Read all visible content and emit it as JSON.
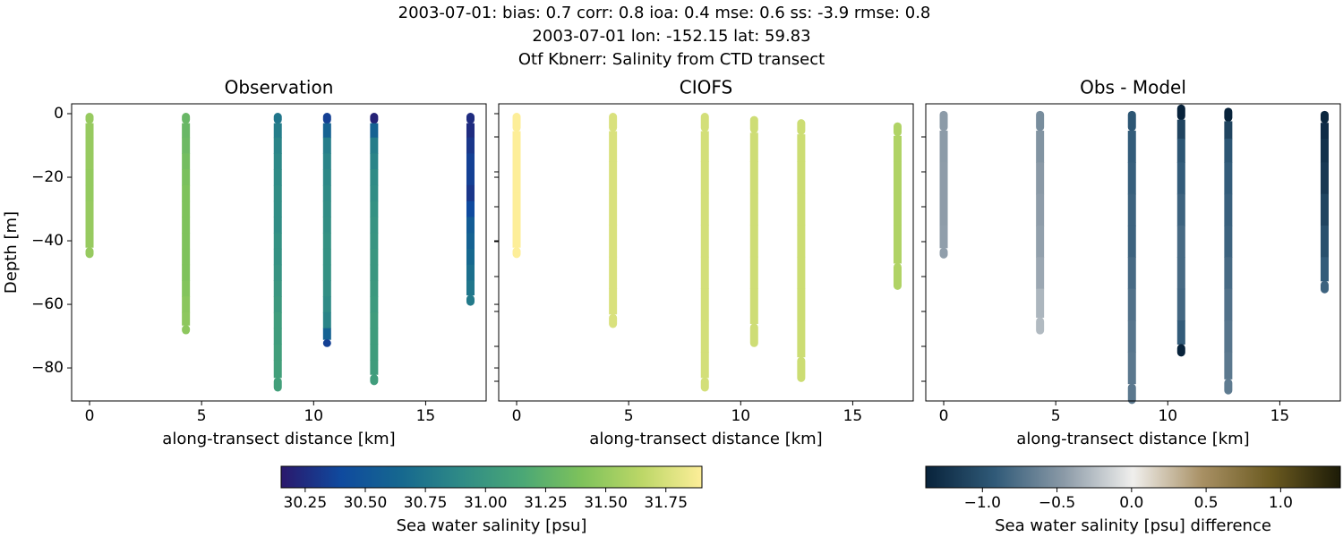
{
  "suptitle": [
    "2003-07-01: bias: 0.7  corr: 0.8  ioa: 0.4  mse: 0.6  ss: -3.9  rmse: 0.8",
    "2003-07-01 lon: -152.15 lat: 59.83",
    "Otf Kbnerr: Salinity from CTD transect"
  ],
  "chart_data": [
    {
      "type": "scatter",
      "title": "Observation",
      "xlabel": "along-transect distance [km]",
      "ylabel": "Depth [m]",
      "xlim": [
        -0.8,
        17.7
      ],
      "ylim": [
        -90.4,
        3.1
      ],
      "xticks": [
        0,
        5,
        10,
        15
      ],
      "yticks": [
        0,
        {
          "value": -20,
          "label": "−20"
        },
        {
          "value": -40,
          "label": "−40"
        },
        {
          "value": -60,
          "label": "−60"
        },
        {
          "value": -80,
          "label": "−80"
        }
      ],
      "colorbar": "obs",
      "columns": [
        {
          "x": 0,
          "depth": [
            -1,
            -5,
            -10,
            -15,
            -20,
            -25,
            -30,
            -35,
            -40,
            -44
          ],
          "values": [
            31.5,
            31.5,
            31.5,
            31.5,
            31.49,
            31.49,
            31.5,
            31.5,
            31.5,
            31.5
          ]
        },
        {
          "x": 4.3,
          "depth": [
            -1,
            -5,
            -10,
            -15,
            -20,
            -25,
            -30,
            -35,
            -40,
            -45,
            -50,
            -55,
            -60,
            -65,
            -68
          ],
          "values": [
            31.3,
            31.3,
            31.32,
            31.35,
            31.38,
            31.4,
            31.4,
            31.4,
            31.4,
            31.4,
            31.4,
            31.42,
            31.45,
            31.46,
            31.46
          ]
        },
        {
          "x": 8.4,
          "depth": [
            -1,
            -5,
            -10,
            -15,
            -20,
            -25,
            -30,
            -35,
            -40,
            -45,
            -50,
            -55,
            -60,
            -65,
            -70,
            -75,
            -80,
            -86
          ],
          "values": [
            30.75,
            30.8,
            30.85,
            30.88,
            30.9,
            30.92,
            30.92,
            30.92,
            30.95,
            30.95,
            30.97,
            31.0,
            31.02,
            31.05,
            31.05,
            31.07,
            31.08,
            31.08
          ]
        },
        {
          "x": 10.6,
          "depth": [
            -1,
            -5,
            -10,
            -15,
            -20,
            -25,
            -30,
            -35,
            -40,
            -45,
            -50,
            -55,
            -60,
            -65,
            -70,
            -72
          ],
          "values": [
            30.35,
            30.6,
            30.8,
            30.85,
            30.88,
            30.9,
            30.92,
            30.93,
            30.95,
            30.95,
            30.95,
            30.93,
            30.9,
            30.85,
            30.6,
            30.35
          ]
        },
        {
          "x": 12.7,
          "depth": [
            -1,
            -5,
            -10,
            -15,
            -20,
            -25,
            -30,
            -35,
            -40,
            -45,
            -50,
            -55,
            -60,
            -65,
            -70,
            -75,
            -80,
            -84
          ],
          "values": [
            30.2,
            30.6,
            30.8,
            30.85,
            30.9,
            30.92,
            30.95,
            30.97,
            30.98,
            31.0,
            31.0,
            31.02,
            31.03,
            31.05,
            31.05,
            31.05,
            31.05,
            31.06
          ]
        },
        {
          "x": 17,
          "depth": [
            -1,
            -5,
            -10,
            -15,
            -20,
            -25,
            -30,
            -35,
            -40,
            -45,
            -50,
            -55,
            -59
          ],
          "values": [
            30.25,
            30.25,
            30.3,
            30.35,
            30.35,
            30.3,
            30.4,
            30.55,
            30.6,
            30.65,
            30.7,
            30.75,
            30.78
          ]
        }
      ]
    },
    {
      "type": "scatter",
      "title": "CIOFS",
      "xlabel": "along-transect distance [km]",
      "xlim": [
        -0.8,
        17.7
      ],
      "ylim": [
        -90.4,
        3.1
      ],
      "xticks": [
        0,
        5,
        10,
        15
      ],
      "colorbar": "obs",
      "columns": [
        {
          "x": 0,
          "depth": [
            -1,
            -10,
            -20,
            -30,
            -40,
            -44
          ],
          "values": [
            31.92,
            31.92,
            31.92,
            31.92,
            31.92,
            31.92
          ]
        },
        {
          "x": 4.3,
          "depth": [
            -1,
            -10,
            -20,
            -30,
            -40,
            -50,
            -60,
            -66
          ],
          "values": [
            31.76,
            31.76,
            31.76,
            31.76,
            31.76,
            31.76,
            31.76,
            31.76
          ]
        },
        {
          "x": 8.4,
          "depth": [
            -1,
            -10,
            -20,
            -30,
            -40,
            -50,
            -60,
            -70,
            -80,
            -86
          ],
          "values": [
            31.74,
            31.74,
            31.74,
            31.74,
            31.74,
            31.74,
            31.74,
            31.74,
            31.74,
            31.74
          ]
        },
        {
          "x": 10.6,
          "depth": [
            -2,
            -10,
            -20,
            -30,
            -40,
            -50,
            -60,
            -72
          ],
          "values": [
            31.72,
            31.72,
            31.72,
            31.72,
            31.72,
            31.72,
            31.72,
            31.72
          ]
        },
        {
          "x": 12.7,
          "depth": [
            -3,
            -10,
            -20,
            -30,
            -40,
            -50,
            -60,
            -70,
            -83
          ],
          "values": [
            31.71,
            31.71,
            31.71,
            31.71,
            31.71,
            31.71,
            31.71,
            31.71,
            31.71
          ]
        },
        {
          "x": 17,
          "depth": [
            -4,
            -10,
            -20,
            -30,
            -40,
            -54
          ],
          "values": [
            31.6,
            31.6,
            31.6,
            31.6,
            31.6,
            31.6
          ]
        }
      ]
    },
    {
      "type": "scatter",
      "title": "Obs - Model",
      "xlabel": "along-transect distance [km]",
      "xlim": [
        -0.8,
        17.7
      ],
      "ylim": [
        -90.5,
        3.5
      ],
      "xticks": [
        0,
        5,
        10,
        15
      ],
      "colorbar": "diff",
      "columns": [
        {
          "x": 0,
          "depth": [
            0,
            -10,
            -20,
            -30,
            -40,
            -44
          ],
          "values": [
            -0.45,
            -0.45,
            -0.44,
            -0.44,
            -0.43,
            -0.43
          ]
        },
        {
          "x": 4.3,
          "depth": [
            0,
            -10,
            -20,
            -30,
            -40,
            -50,
            -60,
            -68
          ],
          "values": [
            -0.55,
            -0.5,
            -0.46,
            -0.44,
            -0.42,
            -0.38,
            -0.3,
            -0.28
          ]
        },
        {
          "x": 8.4,
          "depth": [
            0,
            -10,
            -20,
            -30,
            -40,
            -50,
            -60,
            -70,
            -80,
            -90
          ],
          "values": [
            -0.95,
            -0.9,
            -0.88,
            -0.85,
            -0.85,
            -0.8,
            -0.75,
            -0.72,
            -0.7,
            -0.7
          ]
        },
        {
          "x": 10.6,
          "depth": [
            2,
            -5,
            -10,
            -20,
            -30,
            -40,
            -50,
            -60,
            -70,
            -75
          ],
          "values": [
            -1.4,
            -1.1,
            -0.95,
            -0.9,
            -0.85,
            -0.8,
            -0.8,
            -0.82,
            -0.9,
            -1.4
          ]
        },
        {
          "x": 12.7,
          "depth": [
            1,
            -5,
            -10,
            -20,
            -30,
            -40,
            -50,
            -60,
            -70,
            -80,
            -87
          ],
          "values": [
            -1.45,
            -1.1,
            -0.95,
            -0.9,
            -0.87,
            -0.85,
            -0.8,
            -0.75,
            -0.72,
            -0.7,
            -0.68
          ]
        },
        {
          "x": 17,
          "depth": [
            0,
            -5,
            -10,
            -20,
            -30,
            -40,
            -50,
            -55
          ],
          "values": [
            -1.35,
            -1.3,
            -1.25,
            -1.2,
            -1.1,
            -1.0,
            -0.9,
            -0.85
          ]
        }
      ]
    }
  ],
  "colorbars": {
    "obs": {
      "label": "Sea water salinity [psu]",
      "clim": [
        30.15,
        31.9
      ],
      "cmap": [
        "#2a186c",
        "#0f4a9e",
        "#16688f",
        "#2f8b86",
        "#4aa776",
        "#7ec25b",
        "#bcd767",
        "#fdee99"
      ],
      "ticks": [
        30.25,
        {
          "value": 30.5,
          "label": "30.50"
        },
        30.75,
        {
          "value": 31,
          "label": "31.00"
        },
        31.25,
        {
          "value": 31.5,
          "label": "31.50"
        },
        31.75
      ]
    },
    "diff": {
      "label": "Sea water salinity [psu] difference",
      "clim": [
        -1.38,
        1.4
      ],
      "cmap": [
        "#08233b",
        "#305a78",
        "#8b9aa7",
        "#f0efed",
        "#a89064",
        "#6b5a20",
        "#1c1b07"
      ],
      "ticks": [
        {
          "value": -1,
          "label": "−1.0"
        },
        {
          "value": -0.5,
          "label": "−0.5"
        },
        {
          "value": 0,
          "label": "0.0"
        },
        0.5,
        {
          "value": 1,
          "label": "1.0"
        }
      ]
    }
  }
}
